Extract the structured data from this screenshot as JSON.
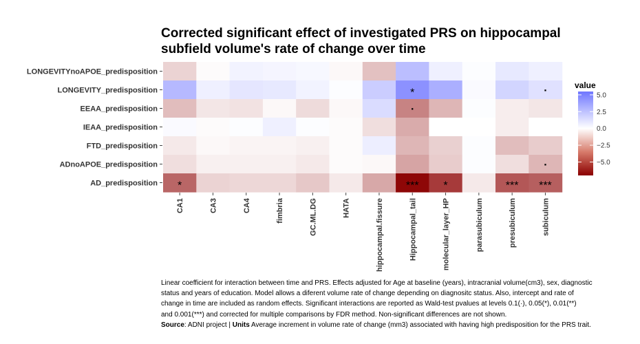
{
  "chart_data": {
    "type": "heatmap",
    "title_lines": [
      "Corrected significant effect of investigated PRS on hippocampal",
      "subfield volume's rate of change over time"
    ],
    "rows": [
      "LONGEVITYnoAPOE_predisposition",
      "LONGEVITY_predisposition",
      "EEAA_predisposition",
      "IEAA_predisposition",
      "FTD_predisposition",
      "ADnoAPOE_predisposition",
      "AD_predisposition"
    ],
    "columns": [
      "CA1",
      "CA3",
      "CA4",
      "fimbria",
      "GC.ML.DG",
      "HATA",
      "hippocampal.fissure",
      "Hippocampal_tail",
      "molecular_layer_HP",
      "parasubiculum",
      "presubiculum",
      "subiculum"
    ],
    "values": [
      [
        -1.2,
        -0.1,
        0.5,
        0.4,
        0.3,
        -0.2,
        -1.7,
        2.6,
        0.6,
        0.1,
        0.9,
        0.6
      ],
      [
        2.8,
        0.6,
        1.0,
        0.9,
        0.5,
        0.1,
        2.0,
        4.4,
        3.2,
        0.2,
        1.7,
        1.2
      ],
      [
        -1.8,
        -0.7,
        -0.8,
        -0.2,
        -1.0,
        -0.2,
        1.4,
        -3.4,
        -2.0,
        0.1,
        -0.5,
        -0.7
      ],
      [
        0.2,
        -0.1,
        0.1,
        0.6,
        0.1,
        -0.1,
        -0.9,
        -2.3,
        0.0,
        0.0,
        -0.5,
        0.0
      ],
      [
        -0.6,
        -0.2,
        -0.3,
        -0.3,
        -0.4,
        -0.1,
        0.7,
        -2.0,
        -1.3,
        0.1,
        -1.8,
        -1.4
      ],
      [
        -0.9,
        -0.4,
        -0.4,
        -0.4,
        -0.6,
        -0.1,
        -0.2,
        -2.5,
        -1.4,
        0.1,
        -0.9,
        -2.0
      ],
      [
        -4.2,
        -1.2,
        -1.1,
        -1.1,
        -1.5,
        -0.6,
        -2.4,
        -6.8,
        -5.4,
        -0.6,
        -4.6,
        -4.4
      ]
    ],
    "significance": [
      [
        "",
        "",
        "",
        "",
        "",
        "",
        "",
        "",
        "",
        "",
        "",
        ""
      ],
      [
        "",
        "",
        "",
        "",
        "",
        "",
        "",
        "*",
        "",
        "",
        "",
        "."
      ],
      [
        "",
        "",
        "",
        "",
        "",
        "",
        "",
        ".",
        "",
        "",
        "",
        ""
      ],
      [
        "",
        "",
        "",
        "",
        "",
        "",
        "",
        "",
        "",
        "",
        "",
        ""
      ],
      [
        "",
        "",
        "",
        "",
        "",
        "",
        "",
        "",
        "",
        "",
        "",
        ""
      ],
      [
        "",
        "",
        "",
        "",
        "",
        "",
        "",
        "",
        "",
        "",
        "",
        "."
      ],
      [
        "*",
        "",
        "",
        "",
        "",
        "",
        "",
        "***",
        "*",
        "",
        "***",
        "***"
      ]
    ],
    "colorbar": {
      "title": "value",
      "ticks": [
        5.0,
        2.5,
        0.0,
        -2.5,
        -5.0
      ],
      "tick_labels": [
        "5.0",
        "2.5",
        "0.0",
        "−2.5",
        "−5.0"
      ],
      "range": [
        -7.0,
        5.5
      ],
      "colors": {
        "high": "#6f76ff",
        "mid": "#ffffff",
        "low": "#8b0000"
      }
    }
  },
  "caption": {
    "line1": "Linear coefficient for interaction between time and PRS. Effects adjusted for Age at baseline (years), intracranial volume(cm3), sex, diagnostic",
    "line2": "status and years of education. Model allows a diferent volume rate of change depending on diagnositc status. Also, intercept and rate of",
    "line3": "change in time are included as random effects. Significant interactions are reported as Wald-test pvalues at levels 0.1(·), 0.05(*), 0.01(**)",
    "line4": "and 0.001(***) and corrected for multiple comparisons by FDR method. Non-significant differences are not shown.",
    "source_label": "Source",
    "source_text": ": ADNI project | ",
    "units_label": "Units",
    "units_text": " Average increment in volume rate of change (mm3) associated with having high predisposition for the PRS trait."
  }
}
